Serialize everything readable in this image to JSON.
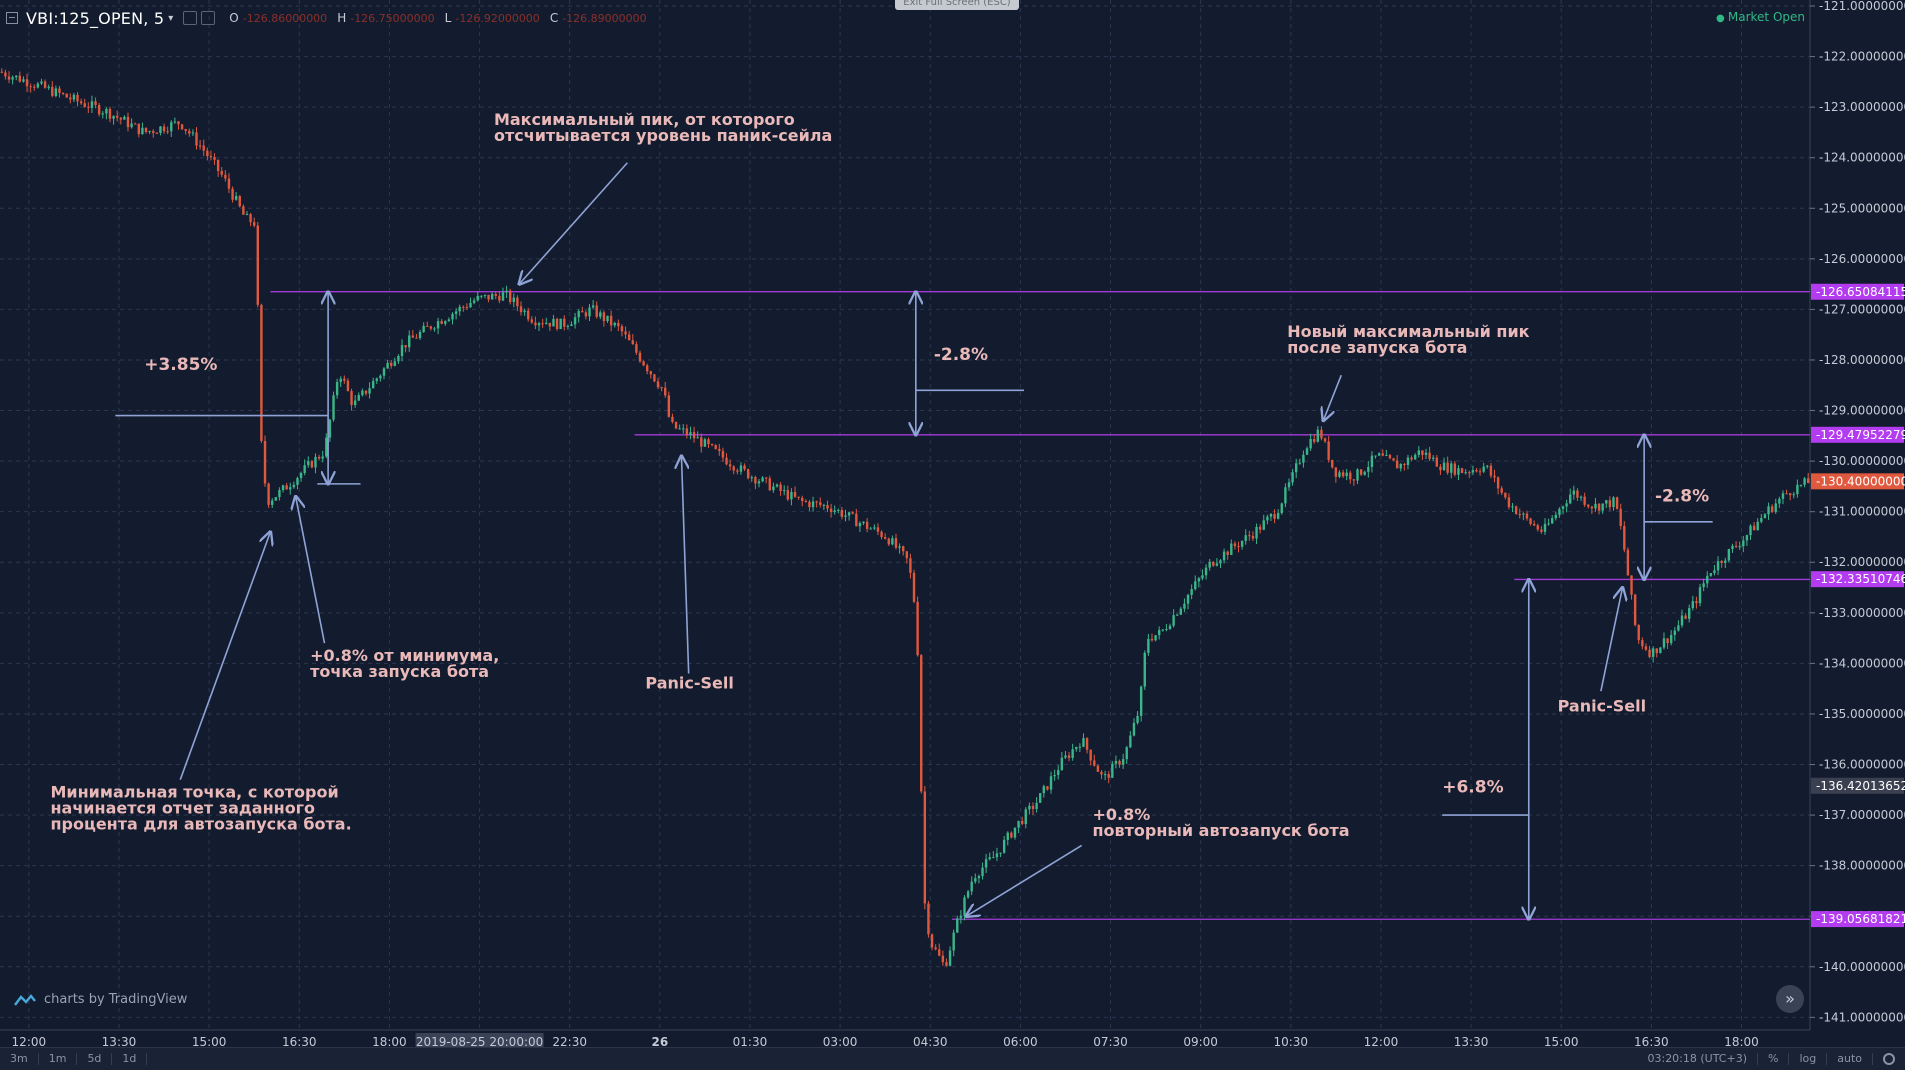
{
  "header": {
    "symbol": "VBI:125_OPEN, 5",
    "ohlc": [
      {
        "k": "O",
        "v": "-126.86000000"
      },
      {
        "k": "H",
        "v": "-126.75000000"
      },
      {
        "k": "L",
        "v": "-126.92000000"
      },
      {
        "k": "C",
        "v": "-126.89000000"
      }
    ],
    "market_status": "Market Open",
    "exit_fullscreen": "Exit Full Screen (ESC)"
  },
  "footer": {
    "intervals": [
      "3m",
      "1m",
      "5d",
      "1d"
    ],
    "clock": "03:20:18 (UTC+3)",
    "scale_opts": [
      "%",
      "log",
      "auto"
    ],
    "brand": "charts by TradingView"
  },
  "colors": {
    "background": "#131c2e",
    "up": "#3bb58a",
    "down": "#e0583e",
    "hline": "#a23ad8",
    "annotation": "#e9b9b9",
    "arrow": "#8fa3d6",
    "grid": "#2c3650"
  },
  "chart_data": {
    "type": "candlestick",
    "ylim": [
      -141.25,
      -121.0
    ],
    "y_ticks": [
      "-121.00000000",
      "-122.00000000",
      "-123.00000000",
      "-124.00000000",
      "-125.00000000",
      "-126.00000000",
      "-127.00000000",
      "-128.00000000",
      "-129.00000000",
      "-130.00000000",
      "-131.00000000",
      "-132.00000000",
      "-133.00000000",
      "-134.00000000",
      "-135.00000000",
      "-136.00000000",
      "-137.00000000",
      "-138.00000000",
      "-139.00000000",
      "-140.00000000",
      "-141.00000000"
    ],
    "x_ticks": [
      "12:00",
      "13:30",
      "15:00",
      "16:30",
      "18:00",
      "2019-08-25 20:00:00",
      "22:30",
      "26",
      "01:30",
      "03:00",
      "04:30",
      "06:00",
      "07:30",
      "09:00",
      "10:30",
      "12:00",
      "13:30",
      "15:00",
      "16:30",
      "18:00"
    ],
    "highlighted_time": "2019-08-25 20:00:00",
    "price_badges": [
      {
        "price": "-126.65084115",
        "color": "#b43cf0"
      },
      {
        "price": "-129.47952279",
        "color": "#b43cf0"
      },
      {
        "price": "-130.40000000",
        "color": "#e0583e"
      },
      {
        "price": "-132.33510746",
        "color": "#b43cf0"
      },
      {
        "price": "-136.42013652",
        "color": "#3a4050"
      },
      {
        "price": "-139.05681821",
        "color": "#b43cf0"
      }
    ],
    "price_path": [
      [
        0,
        -122.3
      ],
      [
        8,
        -122.5
      ],
      [
        15,
        -122.7
      ],
      [
        22,
        -122.9
      ],
      [
        30,
        -123.1
      ],
      [
        40,
        -123.5
      ],
      [
        50,
        -123.3
      ],
      [
        56,
        -123.8
      ],
      [
        62,
        -124.4
      ],
      [
        68,
        -125.2
      ],
      [
        71,
        -125.3
      ],
      [
        71.5,
        -127.0
      ],
      [
        72,
        -129.3
      ],
      [
        74,
        -130.8
      ],
      [
        78,
        -130.6
      ],
      [
        84,
        -130.2
      ],
      [
        90,
        -129.8
      ],
      [
        94,
        -128.2
      ],
      [
        98,
        -128.9
      ],
      [
        104,
        -128.4
      ],
      [
        112,
        -127.7
      ],
      [
        120,
        -127.3
      ],
      [
        132,
        -126.8
      ],
      [
        140,
        -126.7
      ],
      [
        148,
        -127.2
      ],
      [
        156,
        -127.3
      ],
      [
        164,
        -127.0
      ],
      [
        172,
        -127.4
      ],
      [
        178,
        -128.0
      ],
      [
        184,
        -128.6
      ],
      [
        186,
        -129.3
      ],
      [
        192,
        -129.5
      ],
      [
        198,
        -129.8
      ],
      [
        206,
        -130.2
      ],
      [
        214,
        -130.5
      ],
      [
        222,
        -130.8
      ],
      [
        230,
        -130.9
      ],
      [
        238,
        -131.2
      ],
      [
        246,
        -131.5
      ],
      [
        252,
        -132.0
      ],
      [
        254,
        -133.0
      ],
      [
        255,
        -134.5
      ],
      [
        256,
        -138.5
      ],
      [
        258,
        -139.5
      ],
      [
        262,
        -140.0
      ],
      [
        266,
        -139.0
      ],
      [
        270,
        -138.2
      ],
      [
        276,
        -137.8
      ],
      [
        282,
        -137.2
      ],
      [
        288,
        -136.7
      ],
      [
        294,
        -136.0
      ],
      [
        300,
        -135.5
      ],
      [
        306,
        -136.3
      ],
      [
        312,
        -135.8
      ],
      [
        316,
        -134.9
      ],
      [
        318,
        -133.5
      ],
      [
        322,
        -133.4
      ],
      [
        326,
        -133.0
      ],
      [
        330,
        -132.6
      ],
      [
        336,
        -132.0
      ],
      [
        342,
        -131.7
      ],
      [
        348,
        -131.4
      ],
      [
        354,
        -131.0
      ],
      [
        358,
        -130.4
      ],
      [
        362,
        -129.7
      ],
      [
        366,
        -129.4
      ],
      [
        370,
        -130.2
      ],
      [
        376,
        -130.3
      ],
      [
        382,
        -129.9
      ],
      [
        388,
        -130.1
      ],
      [
        394,
        -129.8
      ],
      [
        400,
        -130.1
      ],
      [
        406,
        -130.2
      ],
      [
        412,
        -130.1
      ],
      [
        418,
        -130.8
      ],
      [
        424,
        -131.2
      ],
      [
        428,
        -131.4
      ],
      [
        432,
        -131.0
      ],
      [
        436,
        -130.6
      ],
      [
        442,
        -130.9
      ],
      [
        448,
        -130.8
      ],
      [
        450,
        -131.5
      ],
      [
        452,
        -132.5
      ],
      [
        454,
        -133.5
      ],
      [
        458,
        -133.8
      ],
      [
        464,
        -133.4
      ],
      [
        470,
        -132.8
      ],
      [
        474,
        -132.2
      ],
      [
        478,
        -131.9
      ],
      [
        484,
        -131.5
      ],
      [
        490,
        -131.0
      ],
      [
        496,
        -130.6
      ],
      [
        502,
        -130.4
      ]
    ],
    "hlines": [
      {
        "y": -126.65,
        "x0": 75,
        "x1": 502
      },
      {
        "y": -129.48,
        "x0": 176,
        "x1": 502
      },
      {
        "y": -132.34,
        "x0": 420,
        "x1": 502
      },
      {
        "y": -139.06,
        "x0": 264,
        "x1": 502
      }
    ],
    "measures": [
      {
        "x": 91,
        "y0": -126.65,
        "y1": -130.45,
        "label": "+3.85%",
        "lx": 40,
        "ly": -128.2,
        "tick_y": -129.1,
        "tick_x0": 32,
        "tick_x1": 91
      },
      {
        "x": 254,
        "y0": -126.65,
        "y1": -129.48,
        "label": "-2.8%",
        "lx": 259,
        "ly": -128.0,
        "tick_y": -128.6,
        "tick_x0": 254,
        "tick_x1": 284
      },
      {
        "x": 424,
        "y0": -132.34,
        "y1": -139.06,
        "label": "+6.8%",
        "lx": 400,
        "ly": -136.55,
        "tick_y": -137.0,
        "tick_x0": 400,
        "tick_x1": 424
      },
      {
        "x": 456,
        "y0": -129.48,
        "y1": -132.34,
        "label": "-2.8%",
        "lx": 459,
        "ly": -130.8,
        "tick_y": -131.2,
        "tick_x0": 456,
        "tick_x1": 475
      }
    ],
    "annotations": [
      {
        "lines": [
          "Максимальный пик, от которого",
          "отсчитывается уровень паник-сейла"
        ],
        "x": 137,
        "y": -123.35
      },
      {
        "lines": [
          "Новый максимальный пик",
          "после запуска бота"
        ],
        "x": 357,
        "y": -127.55
      },
      {
        "lines": [
          "+0.8% от минимума,",
          "точка запуска бота"
        ],
        "x": 86,
        "y": -133.95
      },
      {
        "lines": [
          "Panic-Sell"
        ],
        "x": 179,
        "y": -134.5
      },
      {
        "lines": [
          "Panic-Sell"
        ],
        "x": 432,
        "y": -134.95
      },
      {
        "lines": [
          "Минимальная точка, с которой",
          "начинается отчет заданного",
          "процента для автозапуска бота."
        ],
        "x": 14,
        "y": -136.65
      },
      {
        "lines": [
          "+0.8%",
          "повторный автозапуск бота"
        ],
        "x": 303,
        "y": -137.1
      }
    ],
    "arrows": [
      {
        "x0": 174,
        "y0": -124.1,
        "x1": 144,
        "y1": -126.5
      },
      {
        "x0": 50,
        "y0": -136.3,
        "x1": 75,
        "y1": -131.4
      },
      {
        "x0": 90,
        "y0": -133.6,
        "x1": 82,
        "y1": -130.7
      },
      {
        "x0": 191,
        "y0": -134.2,
        "x1": 189,
        "y1": -129.9
      },
      {
        "x0": 372,
        "y0": -128.3,
        "x1": 367,
        "y1": -129.2
      },
      {
        "x0": 444,
        "y0": -134.55,
        "x1": 450,
        "y1": -132.5
      },
      {
        "x0": 300,
        "y0": -137.6,
        "x1": 268,
        "y1": -139.0
      }
    ],
    "x_range": [
      0,
      502
    ],
    "gridlines": true
  }
}
